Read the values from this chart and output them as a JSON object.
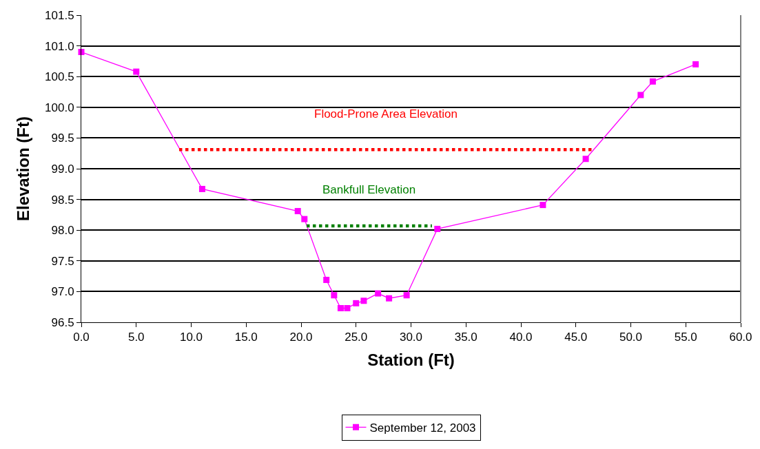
{
  "chart_data": {
    "type": "line",
    "xlabel": "Station (Ft)",
    "ylabel": "Elevation (Ft)",
    "xlim": [
      0,
      60
    ],
    "xticks": [
      {
        "value": 0,
        "label": "0.0"
      },
      {
        "value": 5,
        "label": "5.0"
      },
      {
        "value": 10,
        "label": "10.0"
      },
      {
        "value": 15,
        "label": "15.0"
      },
      {
        "value": 20,
        "label": "20.0"
      },
      {
        "value": 25,
        "label": "25.0"
      },
      {
        "value": 30,
        "label": "30.0"
      },
      {
        "value": 35,
        "label": "35.0"
      },
      {
        "value": 40,
        "label": "40.0"
      },
      {
        "value": 45,
        "label": "45.0"
      },
      {
        "value": 50,
        "label": "50.0"
      },
      {
        "value": 55,
        "label": "55.0"
      },
      {
        "value": 60,
        "label": "60.0"
      }
    ],
    "ylim": [
      96.5,
      101.5
    ],
    "yticks": [
      96.5,
      97.5,
      98.5,
      99.5,
      100.5,
      101.5,
      {
        "value": 97,
        "label": "97.0"
      },
      {
        "value": 98,
        "label": "98.0"
      },
      {
        "value": 99,
        "label": "99.0"
      },
      {
        "value": 100,
        "label": "100.0"
      },
      {
        "value": 101,
        "label": "101.0"
      }
    ],
    "grid": "y",
    "legend": "bottom",
    "series": [
      {
        "name": "September 12, 2003",
        "color": "#ff00ff",
        "marker": "square",
        "line_style": "solid",
        "x": [
          0,
          5.0,
          11.0,
          19.7,
          20.3,
          22.3,
          23.0,
          23.6,
          24.2,
          25.0,
          25.7,
          27.0,
          28.0,
          29.6,
          32.4,
          42.0,
          45.9,
          50.9,
          52.0,
          55.9
        ],
        "values": [
          100.9,
          100.58,
          98.67,
          98.31,
          98.18,
          97.19,
          96.94,
          96.73,
          96.73,
          96.81,
          96.85,
          96.97,
          96.89,
          96.94,
          98.02,
          98.41,
          99.16,
          100.2,
          100.42,
          100.7
        ]
      },
      {
        "name": "Flood-Prone Area Elevation",
        "color": "#ff0000",
        "marker": "none",
        "line_style": "dotted",
        "x": [
          8.9,
          46.5
        ],
        "values": [
          99.31,
          99.31
        ]
      },
      {
        "name": "Bankfull Elevation",
        "color": "#008000",
        "marker": "none",
        "line_style": "dotted",
        "x": [
          20.5,
          31.9
        ],
        "values": [
          98.07,
          98.07
        ]
      }
    ]
  }
}
